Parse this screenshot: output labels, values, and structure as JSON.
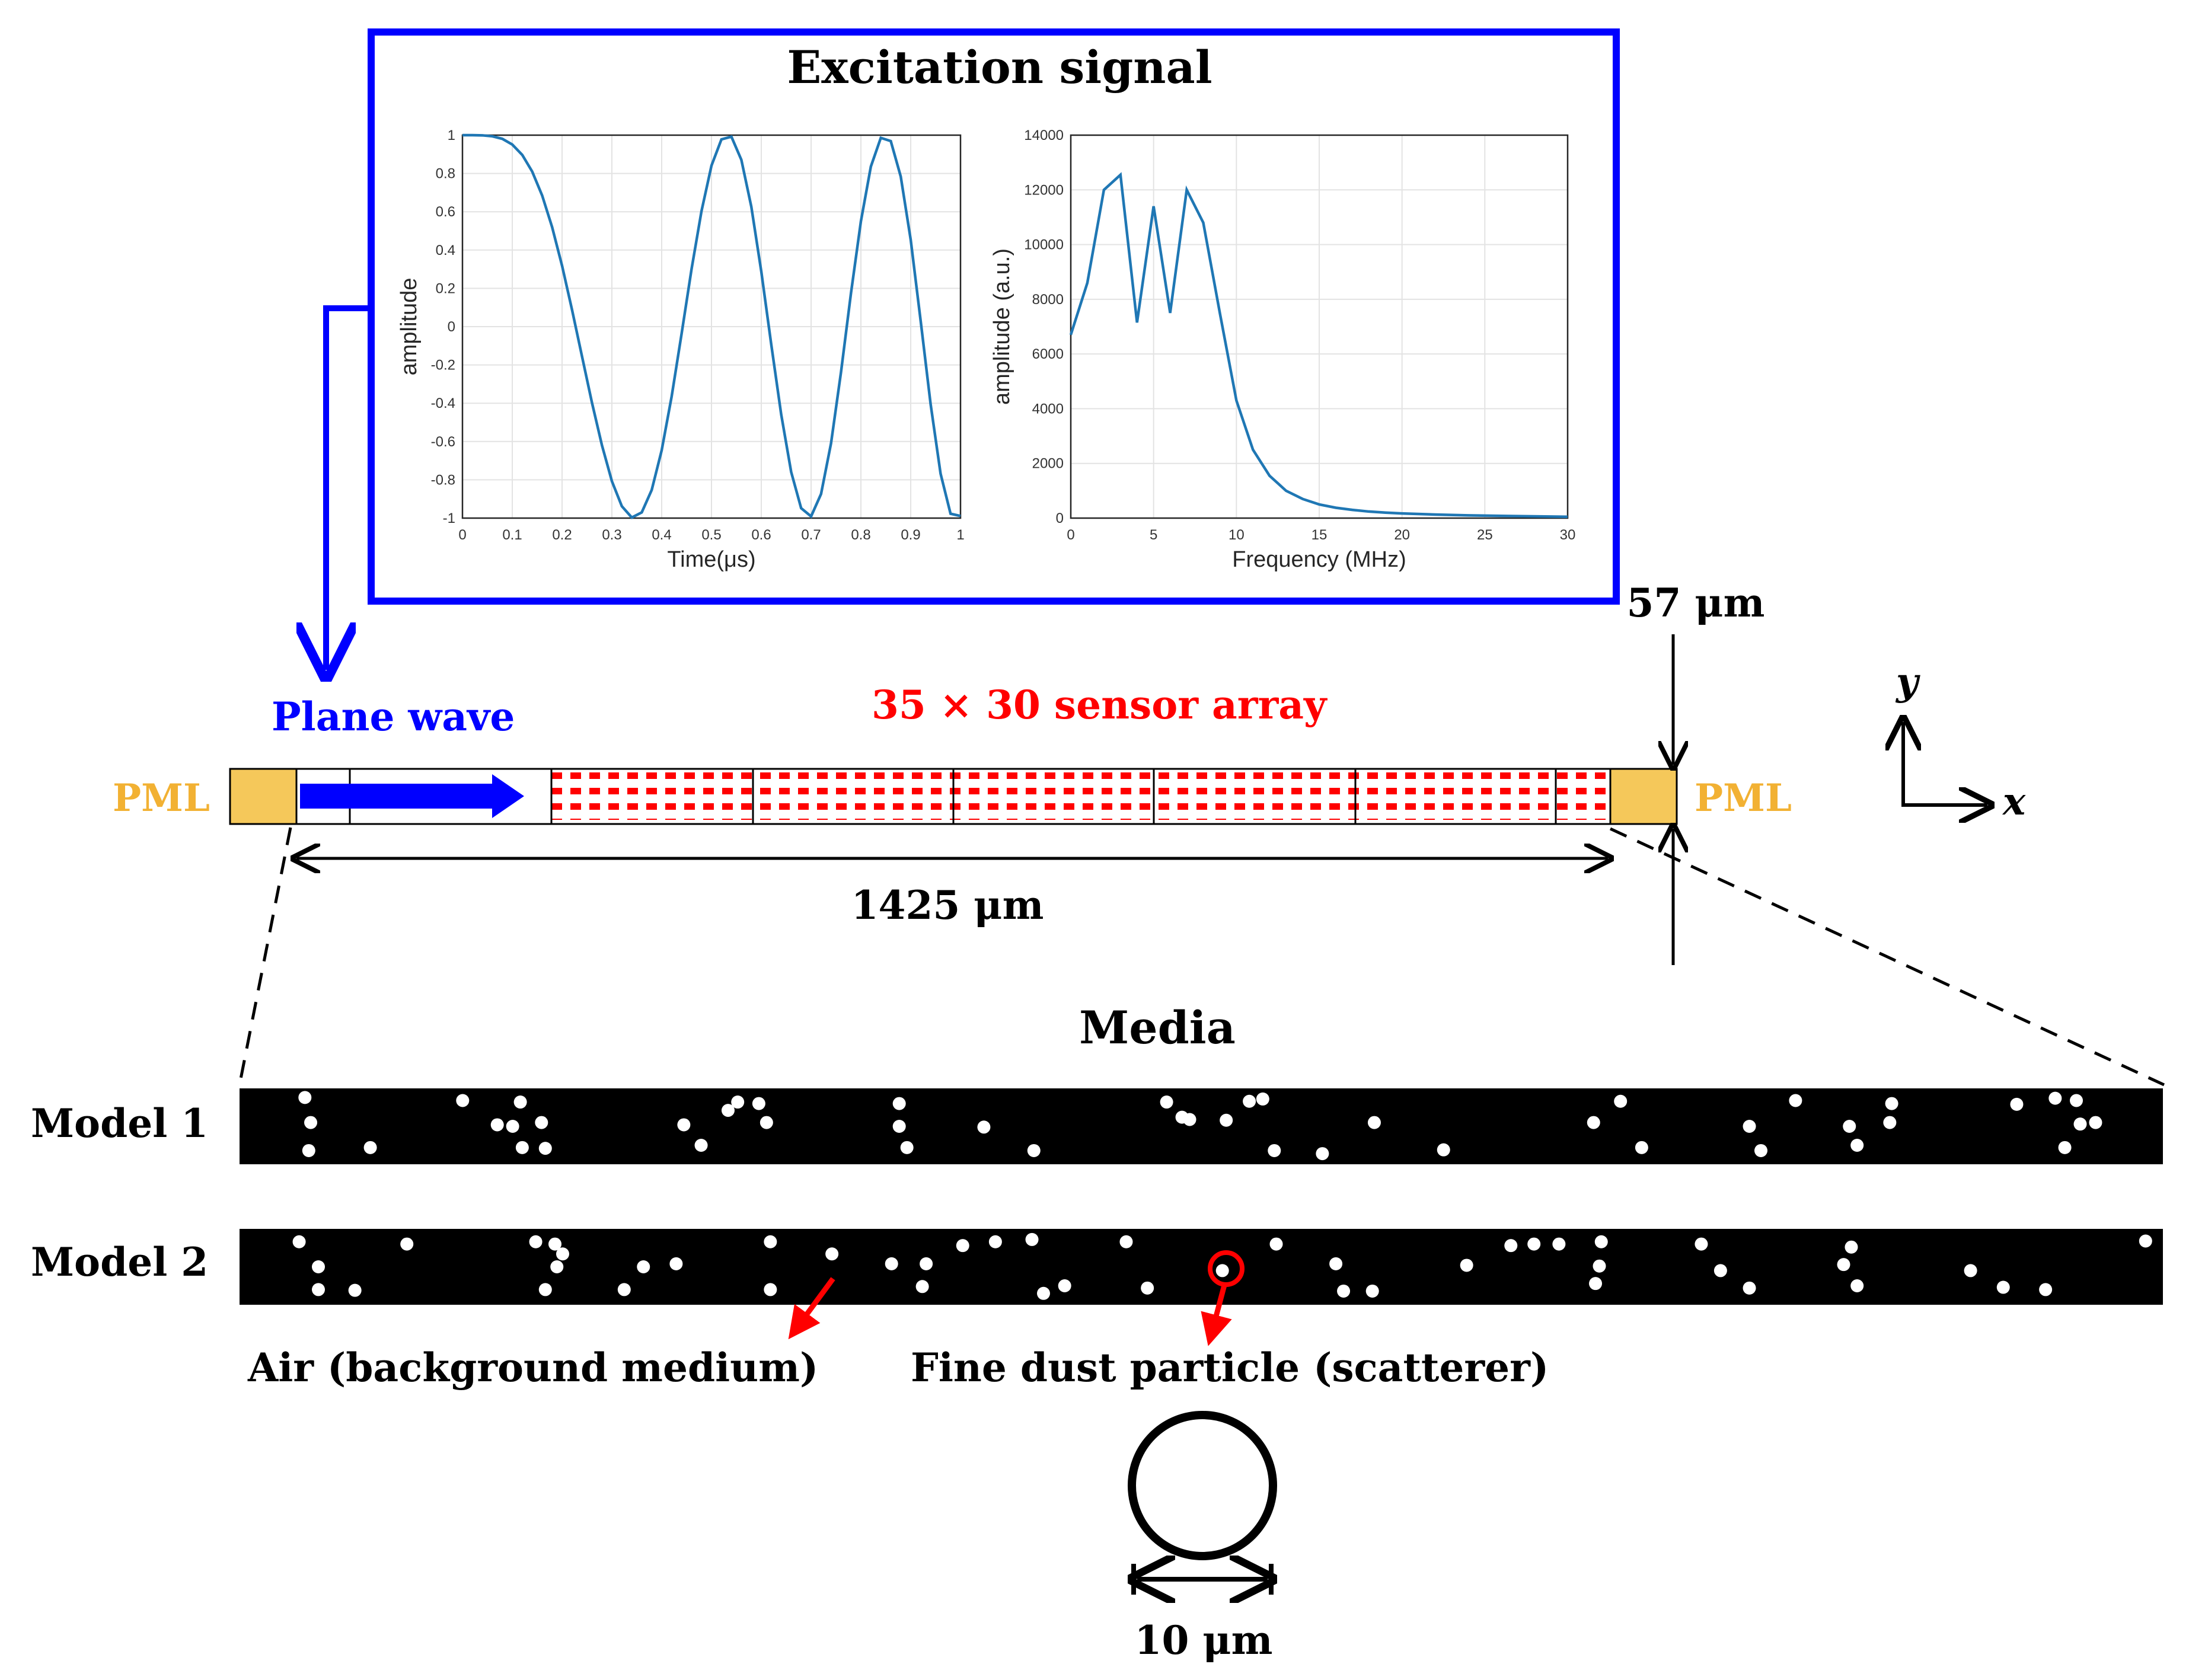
{
  "excitation": {
    "title": "Excitation signal",
    "border_color": "#0000ff"
  },
  "chart_data": [
    {
      "type": "line",
      "title": "",
      "xlabel": "Time(μs)",
      "ylabel": "amplitude",
      "xlim": [
        0,
        1
      ],
      "ylim": [
        -1,
        1
      ],
      "grid": true,
      "x_ticks": [
        "0",
        "0.1",
        "0.2",
        "0.3",
        "0.4",
        "0.5",
        "0.6",
        "0.7",
        "0.8",
        "0.9",
        "1"
      ],
      "y_ticks": [
        "1",
        "0.8",
        "0.6",
        "0.4",
        "0.2",
        "0",
        "-0.2",
        "-0.4",
        "-0.6",
        "-0.8",
        "-1"
      ],
      "series": [
        {
          "color": "#1f77b4",
          "x": [
            0.0,
            0.02,
            0.04,
            0.06,
            0.08,
            0.1,
            0.12,
            0.14,
            0.16,
            0.18,
            0.2,
            0.22,
            0.24,
            0.26,
            0.28,
            0.3,
            0.32,
            0.34,
            0.36,
            0.38,
            0.4,
            0.42,
            0.44,
            0.46,
            0.48,
            0.5,
            0.52,
            0.54,
            0.56,
            0.58,
            0.6,
            0.62,
            0.64,
            0.66,
            0.68,
            0.7,
            0.72,
            0.74,
            0.76,
            0.78,
            0.8,
            0.82,
            0.84,
            0.86,
            0.88,
            0.9,
            0.92,
            0.94,
            0.96,
            0.98,
            1.0
          ],
          "y": [
            1.0,
            1.0,
            0.999,
            0.994,
            0.981,
            0.951,
            0.897,
            0.81,
            0.685,
            0.52,
            0.318,
            0.088,
            -0.155,
            -0.397,
            -0.619,
            -0.807,
            -0.938,
            -0.997,
            -0.97,
            -0.853,
            -0.646,
            -0.365,
            -0.037,
            0.301,
            0.604,
            0.841,
            0.978,
            0.992,
            0.871,
            0.626,
            0.288,
            -0.093,
            -0.459,
            -0.759,
            -0.948,
            -0.991,
            -0.874,
            -0.61,
            -0.239,
            0.173,
            0.55,
            0.836,
            0.986,
            0.969,
            0.784,
            0.454,
            0.03,
            -0.405,
            -0.768,
            -0.977,
            -0.989
          ]
        }
      ]
    },
    {
      "type": "line",
      "title": "",
      "xlabel": "Frequency (MHz)",
      "ylabel": "amplitude (a.u.)",
      "xlim": [
        0,
        30
      ],
      "ylim": [
        0,
        14000
      ],
      "grid": true,
      "x_ticks": [
        "0",
        "5",
        "10",
        "15",
        "20",
        "25",
        "30"
      ],
      "y_ticks": [
        "14000",
        "12000",
        "10000",
        "8000",
        "6000",
        "4000",
        "2000",
        "0"
      ],
      "series": [
        {
          "color": "#1f77b4",
          "x": [
            0,
            1,
            2,
            3,
            4,
            5,
            6,
            7,
            8,
            9,
            10,
            11,
            12,
            13,
            14,
            15,
            16,
            17,
            18,
            19,
            20,
            22,
            24,
            26,
            28,
            30
          ],
          "y": [
            6700,
            8600,
            12000,
            12550,
            7150,
            11400,
            7500,
            12000,
            10800,
            7500,
            4300,
            2500,
            1550,
            1000,
            700,
            500,
            380,
            300,
            240,
            200,
            170,
            130,
            100,
            80,
            65,
            50
          ]
        }
      ]
    }
  ],
  "labels": {
    "plane_wave": "Plane wave",
    "sensor_array": "35 × 30 sensor array",
    "pml_left": "PML",
    "pml_right": "PML",
    "height": "57 μm",
    "length": "1425 μm",
    "axis_y": "y",
    "axis_x": "x",
    "media": "Media",
    "model1": "Model 1",
    "model2": "Model 2",
    "air": "Air (background  medium)",
    "dust": "Fine dust particle (scatterer)",
    "diameter": "10 μm"
  },
  "colors": {
    "plane_wave": "#0000ff",
    "sensor": "#ff0000",
    "pml": "#f5c85a",
    "pml_text": "#f2b133",
    "pointer": "#ff0000"
  },
  "model1_particles": [
    [
      0.034,
      0.12
    ],
    [
      0.037,
      0.45
    ],
    [
      0.036,
      0.82
    ],
    [
      0.068,
      0.78
    ],
    [
      0.116,
      0.16
    ],
    [
      0.134,
      0.48
    ],
    [
      0.142,
      0.5
    ],
    [
      0.146,
      0.18
    ],
    [
      0.147,
      0.78
    ],
    [
      0.159,
      0.79
    ],
    [
      0.157,
      0.45
    ],
    [
      0.231,
      0.48
    ],
    [
      0.24,
      0.75
    ],
    [
      0.254,
      0.29
    ],
    [
      0.259,
      0.18
    ],
    [
      0.27,
      0.2
    ],
    [
      0.274,
      0.45
    ],
    [
      0.343,
      0.2
    ],
    [
      0.343,
      0.5
    ],
    [
      0.347,
      0.78
    ],
    [
      0.387,
      0.51
    ],
    [
      0.413,
      0.82
    ],
    [
      0.482,
      0.18
    ],
    [
      0.49,
      0.38
    ],
    [
      0.494,
      0.41
    ],
    [
      0.513,
      0.42
    ],
    [
      0.525,
      0.17
    ],
    [
      0.532,
      0.14
    ],
    [
      0.538,
      0.82
    ],
    [
      0.563,
      0.86
    ],
    [
      0.59,
      0.45
    ],
    [
      0.626,
      0.81
    ],
    [
      0.704,
      0.45
    ],
    [
      0.718,
      0.17
    ],
    [
      0.729,
      0.78
    ],
    [
      0.785,
      0.5
    ],
    [
      0.791,
      0.82
    ],
    [
      0.809,
      0.16
    ],
    [
      0.837,
      0.5
    ],
    [
      0.841,
      0.75
    ],
    [
      0.858,
      0.45
    ],
    [
      0.859,
      0.2
    ],
    [
      0.924,
      0.21
    ],
    [
      0.944,
      0.13
    ],
    [
      0.949,
      0.78
    ],
    [
      0.955,
      0.16
    ],
    [
      0.957,
      0.47
    ],
    [
      0.965,
      0.45
    ]
  ],
  "model2_particles": [
    [
      0.031,
      0.17
    ],
    [
      0.041,
      0.5
    ],
    [
      0.041,
      0.8
    ],
    [
      0.06,
      0.81
    ],
    [
      0.087,
      0.2
    ],
    [
      0.154,
      0.17
    ],
    [
      0.159,
      0.8
    ],
    [
      0.164,
      0.2
    ],
    [
      0.165,
      0.5
    ],
    [
      0.168,
      0.33
    ],
    [
      0.2,
      0.8
    ],
    [
      0.21,
      0.5
    ],
    [
      0.227,
      0.46
    ],
    [
      0.276,
      0.17
    ],
    [
      0.276,
      0.8
    ],
    [
      0.308,
      0.33
    ],
    [
      0.339,
      0.46
    ],
    [
      0.355,
      0.76
    ],
    [
      0.357,
      0.46
    ],
    [
      0.376,
      0.22
    ],
    [
      0.393,
      0.17
    ],
    [
      0.412,
      0.14
    ],
    [
      0.418,
      0.85
    ],
    [
      0.429,
      0.75
    ],
    [
      0.461,
      0.17
    ],
    [
      0.472,
      0.78
    ],
    [
      0.511,
      0.55
    ],
    [
      0.539,
      0.2
    ],
    [
      0.57,
      0.46
    ],
    [
      0.574,
      0.82
    ],
    [
      0.589,
      0.82
    ],
    [
      0.638,
      0.48
    ],
    [
      0.661,
      0.22
    ],
    [
      0.673,
      0.2
    ],
    [
      0.686,
      0.2
    ],
    [
      0.708,
      0.17
    ],
    [
      0.707,
      0.49
    ],
    [
      0.705,
      0.72
    ],
    [
      0.76,
      0.2
    ],
    [
      0.77,
      0.55
    ],
    [
      0.785,
      0.78
    ],
    [
      0.834,
      0.47
    ],
    [
      0.838,
      0.24
    ],
    [
      0.841,
      0.75
    ],
    [
      0.9,
      0.55
    ],
    [
      0.917,
      0.77
    ],
    [
      0.939,
      0.8
    ],
    [
      0.991,
      0.16
    ]
  ]
}
